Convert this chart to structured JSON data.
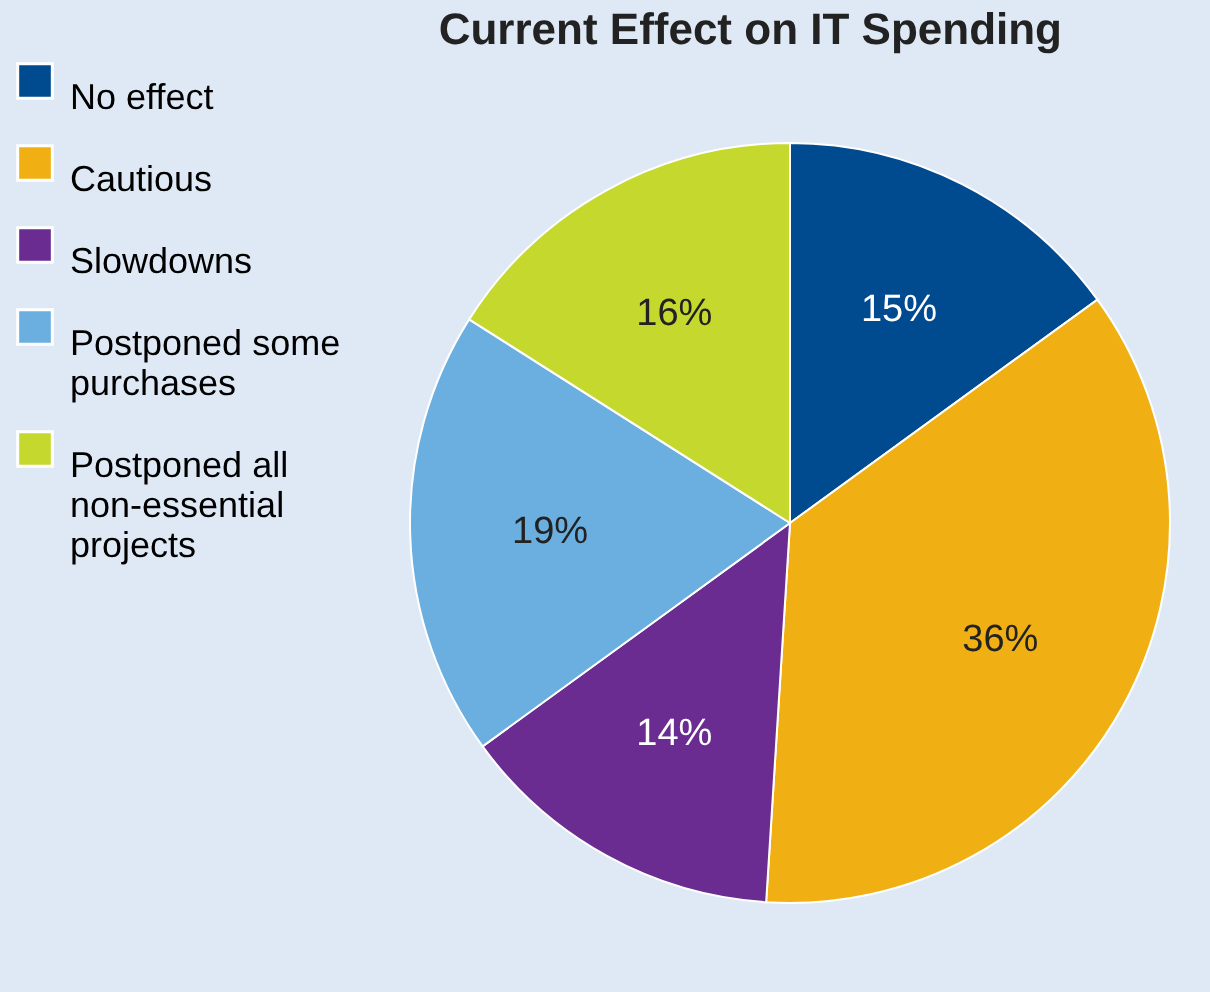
{
  "chart_data": {
    "type": "pie",
    "title": "Current Effect on IT Spending",
    "categories": [
      "No effect",
      "Cautious",
      "Slowdowns",
      "Postponed some purchases",
      "Postponed all non-essential projects"
    ],
    "values": [
      15,
      36,
      14,
      19,
      16
    ],
    "colors": [
      "#004a8f",
      "#f0b013",
      "#6a2c91",
      "#6aafe0",
      "#c4d82e"
    ],
    "value_labels": [
      "15%",
      "36%",
      "14%",
      "19%",
      "16%"
    ],
    "legend": "left"
  }
}
